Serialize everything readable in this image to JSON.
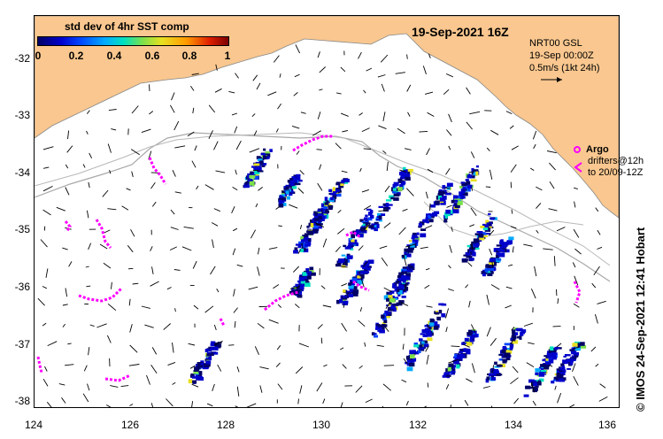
{
  "map": {
    "title": "19-Sep-2021 16Z",
    "x_ticks": [
      "124",
      "126",
      "128",
      "130",
      "132",
      "134",
      "136"
    ],
    "y_ticks": [
      "-32",
      "-33",
      "-34",
      "-35",
      "-36",
      "-37",
      "-38"
    ],
    "land_color": "#f9c78f",
    "coast_color": "#c8c8c8",
    "drifter_color": "#ff00ff",
    "vector_color": "#000000",
    "bathymetry_color": "#a0a0a0"
  },
  "colorbar": {
    "title": "std dev of 4hr SST comp",
    "ticks": [
      "0",
      "0.2",
      "0.4",
      "0.6",
      "0.8",
      "1"
    ],
    "colors": [
      "#000066",
      "#0000cc",
      "#0044ff",
      "#00aaff",
      "#00e0c0",
      "#7de04a",
      "#e8e020",
      "#ff9a00",
      "#e02000",
      "#7a0000"
    ]
  },
  "legend": {
    "line1": "NRT00 GSL",
    "line2": "19-Sep 00:00Z",
    "line3": "0.5m/s (1kt 24h)"
  },
  "argo": {
    "label": "Argo",
    "line1": "drifters@12h",
    "line2": "to 20/09-12Z"
  },
  "caption": "© IMOS 24-Sep-2021 12:41 Hobart"
}
